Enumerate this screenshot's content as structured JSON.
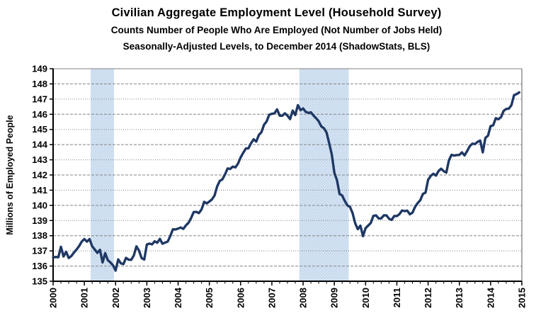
{
  "chart_data": {
    "type": "line",
    "title": "Civilian Aggregate Employment Level (Household Survey)",
    "subtitle1": "Counts Number of People Who Are Employed (Not Number of Jobs Held)",
    "subtitle2": "Seasonally-Adjusted Levels, to December 2014 (ShadowStats, BLS)",
    "ylabel": "Millions of Employed People",
    "xlabel": "",
    "ylim": [
      135,
      149
    ],
    "xlim": [
      2000,
      2015
    ],
    "grid": true,
    "legend": "none",
    "y_tick_labels": [
      "135",
      "136",
      "137",
      "138",
      "139",
      "140",
      "141",
      "142",
      "143",
      "144",
      "145",
      "146",
      "147",
      "148",
      "149"
    ],
    "x_tick_labels": [
      "2000",
      "2001",
      "2002",
      "2003",
      "2004",
      "2005",
      "2006",
      "2007",
      "2008",
      "2009",
      "2010",
      "2011",
      "2012",
      "2013",
      "2014",
      "2015"
    ],
    "x_minor_tick_step_years": 0.25,
    "recession_bands": [
      {
        "start": 2001.2,
        "end": 2001.95
      },
      {
        "start": 2007.88,
        "end": 2009.46
      }
    ],
    "series": [
      {
        "name": "Civilian Aggregate Employment Level",
        "unit": "millions of employed people",
        "frequency": "monthly",
        "start_year": 2000,
        "start_month": 1,
        "end_label": "December 2014",
        "values": [
          136.56,
          136.6,
          136.58,
          137.27,
          136.63,
          136.94,
          136.53,
          136.66,
          136.89,
          137.09,
          137.32,
          137.61,
          137.78,
          137.61,
          137.78,
          137.3,
          137.09,
          136.87,
          137.07,
          136.24,
          136.85,
          136.39,
          136.24,
          136.05,
          135.7,
          136.44,
          136.18,
          136.13,
          136.54,
          136.42,
          136.41,
          136.7,
          137.3,
          137.01,
          136.52,
          136.43,
          137.42,
          137.48,
          137.43,
          137.63,
          137.54,
          137.79,
          137.47,
          137.55,
          137.61,
          137.98,
          138.42,
          138.41,
          138.47,
          138.54,
          138.45,
          138.68,
          138.85,
          139.17,
          139.56,
          139.57,
          139.49,
          139.73,
          140.23,
          140.13,
          140.25,
          140.39,
          140.65,
          141.25,
          141.61,
          141.71,
          142.03,
          142.43,
          142.4,
          142.55,
          142.5,
          142.75,
          143.15,
          143.46,
          143.74,
          143.76,
          144.09,
          144.35,
          144.2,
          144.63,
          144.82,
          145.31,
          145.53,
          145.97,
          146.03,
          146.06,
          146.32,
          145.91,
          145.9,
          146.06,
          145.91,
          145.68,
          146.24,
          145.95,
          146.6,
          146.27,
          146.38,
          146.16,
          146.09,
          146.13,
          145.91,
          145.74,
          145.53,
          145.2,
          145.08,
          144.8,
          144.1,
          143.37,
          142.15,
          141.66,
          140.75,
          140.65,
          140.29,
          140.0,
          139.9,
          139.49,
          138.82,
          138.43,
          138.66,
          137.97,
          138.5,
          138.67,
          138.84,
          139.31,
          139.34,
          139.14,
          139.14,
          139.34,
          139.34,
          139.12,
          139.04,
          139.3,
          139.29,
          139.42,
          139.66,
          139.62,
          139.65,
          139.41,
          139.52,
          139.9,
          140.15,
          140.34,
          140.75,
          140.84,
          141.68,
          141.94,
          142.08,
          141.96,
          142.26,
          142.41,
          142.25,
          142.16,
          142.97,
          143.33,
          143.28,
          143.31,
          143.32,
          143.49,
          143.29,
          143.58,
          143.9,
          144.06,
          144.04,
          144.18,
          144.27,
          143.49,
          144.44,
          144.59,
          145.22,
          145.27,
          145.74,
          145.67,
          145.81,
          146.22,
          146.35,
          146.37,
          146.6,
          147.26,
          147.33,
          147.44
        ]
      }
    ],
    "colors": {
      "line": "#1f3864",
      "band_base": "#c7daee",
      "band_dot": "#e9f0f8",
      "grid": "#858585",
      "top_border": "#808080",
      "right_border": "#595959",
      "axis": "#000000",
      "text": "#000000",
      "background": "#ffffff"
    }
  }
}
